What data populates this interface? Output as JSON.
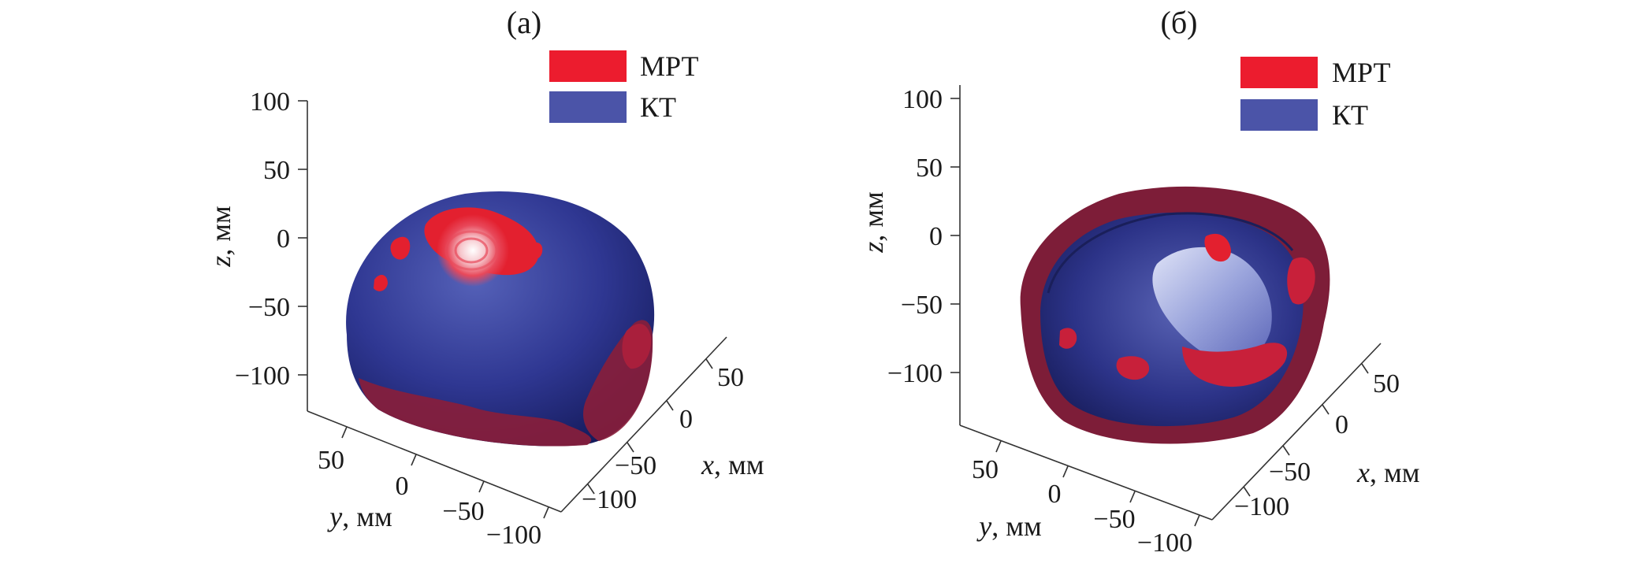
{
  "chart_data": [
    {
      "type": "other",
      "panel_label": "(а)",
      "legend": [
        {
          "label": "МРТ",
          "color": "#ec1c2e"
        },
        {
          "label": "КТ",
          "color": "#4b54a8"
        }
      ],
      "axes": {
        "z": {
          "label_var": "z",
          "label_unit": ", мм",
          "ticks": [
            "100",
            "50",
            "0",
            "−50",
            "−100"
          ]
        },
        "x": {
          "label_var": "x",
          "label_unit": ", мм",
          "ticks": [
            "50",
            "0",
            "−50",
            "−100"
          ]
        },
        "y": {
          "label_var": "y",
          "label_unit": ", мм",
          "ticks": [
            "50",
            "0",
            "−50",
            "−100"
          ]
        }
      },
      "grid": false,
      "legend_position": "top-right"
    },
    {
      "type": "other",
      "panel_label": "(б)",
      "legend": [
        {
          "label": "МРТ",
          "color": "#ec1c2e"
        },
        {
          "label": "КТ",
          "color": "#4b54a8"
        }
      ],
      "axes": {
        "z": {
          "label_var": "z",
          "label_unit": ", мм",
          "ticks": [
            "100",
            "50",
            "0",
            "−50",
            "−100"
          ]
        },
        "x": {
          "label_var": "x",
          "label_unit": ", мм",
          "ticks": [
            "50",
            "0",
            "−50",
            "−100"
          ]
        },
        "y": {
          "label_var": "y",
          "label_unit": ", мм",
          "ticks": [
            "50",
            "0",
            "−50",
            "−100"
          ]
        }
      },
      "grid": false,
      "legend_position": "top-right"
    }
  ]
}
